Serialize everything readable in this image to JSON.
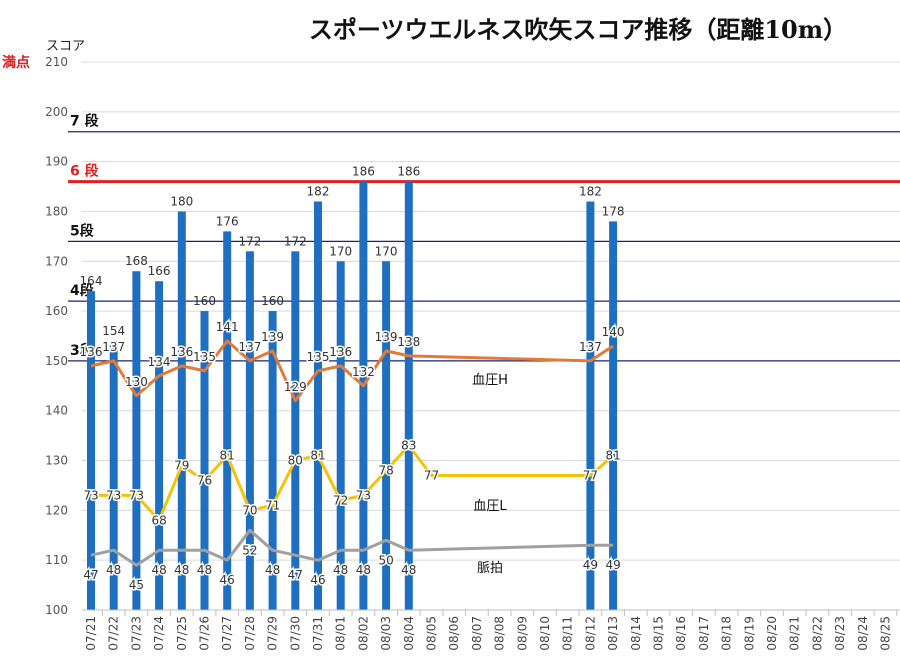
{
  "chart_data": {
    "type": "bar",
    "title": "スポーツウエルネス吹矢スコア推移（距離10m）",
    "ylabel": "スコア",
    "ylim": [
      100,
      210
    ],
    "yticks": [
      100,
      110,
      120,
      130,
      140,
      150,
      160,
      170,
      180,
      190,
      200,
      210
    ],
    "grid": true,
    "categories": [
      "07/21",
      "07/22",
      "07/23",
      "07/24",
      "07/25",
      "07/26",
      "07/27",
      "07/28",
      "07/29",
      "07/30",
      "07/31",
      "08/01",
      "08/02",
      "08/03",
      "08/04",
      "08/05",
      "08/06",
      "08/07",
      "08/08",
      "08/09",
      "08/10",
      "08/11",
      "08/12",
      "08/13",
      "08/14",
      "08/15",
      "08/16",
      "08/17",
      "08/18",
      "08/19",
      "08/20",
      "08/21",
      "08/22",
      "08/23",
      "08/24",
      "08/25"
    ],
    "series": [
      {
        "name": "",
        "kind": "bar",
        "color": "#1f6fc0",
        "values": [
          164,
          154,
          168,
          166,
          180,
          160,
          176,
          172,
          160,
          172,
          182,
          170,
          186,
          170,
          186,
          null,
          null,
          null,
          null,
          null,
          null,
          null,
          182,
          178,
          null,
          null,
          null,
          null,
          null,
          null,
          null,
          null,
          null,
          null,
          null,
          null
        ]
      },
      {
        "name": "血圧H",
        "kind": "line",
        "color": "#e07b39",
        "values": [
          136,
          137,
          130,
          134,
          136,
          135,
          141,
          137,
          139,
          129,
          135,
          136,
          132,
          139,
          138,
          null,
          null,
          null,
          null,
          null,
          null,
          null,
          137,
          140,
          null,
          null,
          null,
          null,
          null,
          null,
          null,
          null,
          null,
          null,
          null,
          null
        ]
      },
      {
        "name": "血圧L",
        "kind": "line",
        "color": "#f5c20a",
        "values": [
          73,
          73,
          73,
          68,
          79,
          76,
          81,
          70,
          71,
          80,
          81,
          72,
          73,
          78,
          83,
          77,
          null,
          null,
          null,
          null,
          null,
          null,
          77,
          81,
          null,
          null,
          null,
          null,
          null,
          null,
          null,
          null,
          null,
          null,
          null,
          null
        ]
      },
      {
        "name": "脈拍",
        "kind": "line",
        "color": "#a0a0a0",
        "values": [
          47,
          48,
          45,
          48,
          48,
          48,
          46,
          52,
          48,
          47,
          46,
          48,
          48,
          50,
          48,
          null,
          null,
          null,
          null,
          null,
          null,
          null,
          49,
          49,
          null,
          null,
          null,
          null,
          null,
          null,
          null,
          null,
          null,
          null,
          null,
          null
        ]
      }
    ],
    "reference_lines": [
      {
        "value": 210,
        "label": "満点",
        "color": "#cccccc"
      },
      {
        "value": 196,
        "label": "7 段",
        "color": "#1a237e"
      },
      {
        "value": 186,
        "label": "6 段",
        "color": "#e02020"
      },
      {
        "value": 174,
        "label": "5段",
        "color": "#1a237e"
      },
      {
        "value": 162,
        "label": "4段",
        "color": "#1a237e"
      },
      {
        "value": 150,
        "label": "3段",
        "color": "#1a237e"
      }
    ]
  }
}
